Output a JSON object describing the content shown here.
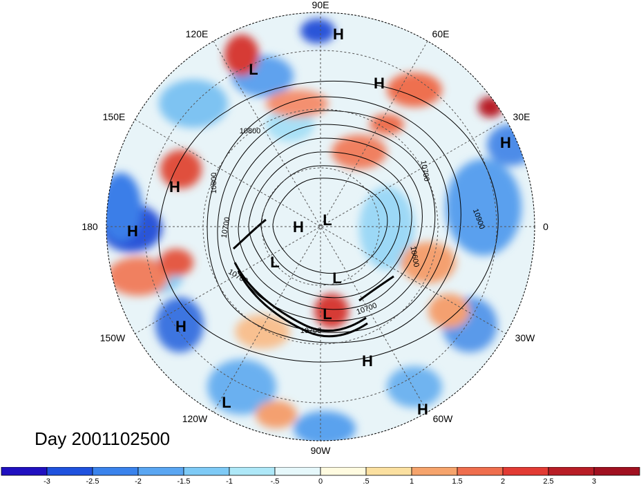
{
  "title": "Day 2001102500",
  "longitude_labels": [
    "90E",
    "60E",
    "30E",
    "0",
    "30W",
    "60W",
    "90W",
    "120W",
    "150W",
    "180",
    "150E",
    "120E"
  ],
  "contour_labels": [
    "10800",
    "10800",
    "10700",
    "10700",
    "10700",
    "10600",
    "10900",
    "10700",
    "10700"
  ],
  "pressure_centers": [
    {
      "type": "H",
      "region": "north Siberia"
    },
    {
      "type": "H",
      "region": "west Siberia"
    },
    {
      "type": "L",
      "region": "east Siberia"
    },
    {
      "type": "H",
      "region": "Europe"
    },
    {
      "type": "H",
      "region": "north Pacific"
    },
    {
      "type": "H",
      "region": "dateline Pacific"
    },
    {
      "type": "H",
      "region": "Arctic Canada"
    },
    {
      "type": "L",
      "region": "Arctic"
    },
    {
      "type": "L",
      "region": "Canada"
    },
    {
      "type": "L",
      "region": "Greenland"
    },
    {
      "type": "L",
      "region": "Great Lakes"
    },
    {
      "type": "H",
      "region": "east Pacific"
    },
    {
      "type": "H",
      "region": "west Atlantic"
    },
    {
      "type": "L",
      "region": "tropical east Pacific"
    },
    {
      "type": "H",
      "region": "tropical Atlantic"
    }
  ],
  "colorbar": {
    "tick_labels": [
      "-3",
      "-2.5",
      "-2",
      "-1.5",
      "-1",
      "-.5",
      "0",
      ".5",
      "1",
      "1.5",
      "2",
      "2.5",
      "3"
    ],
    "colors": [
      "#2010c0",
      "#1f52de",
      "#3a83ec",
      "#5aa6f2",
      "#7ecaf6",
      "#aee8f8",
      "#e6f8fb",
      "#fffbe0",
      "#fbe0a0",
      "#f6a46c",
      "#ef6e4e",
      "#e23b34",
      "#b81d26",
      "#a01020"
    ]
  }
}
